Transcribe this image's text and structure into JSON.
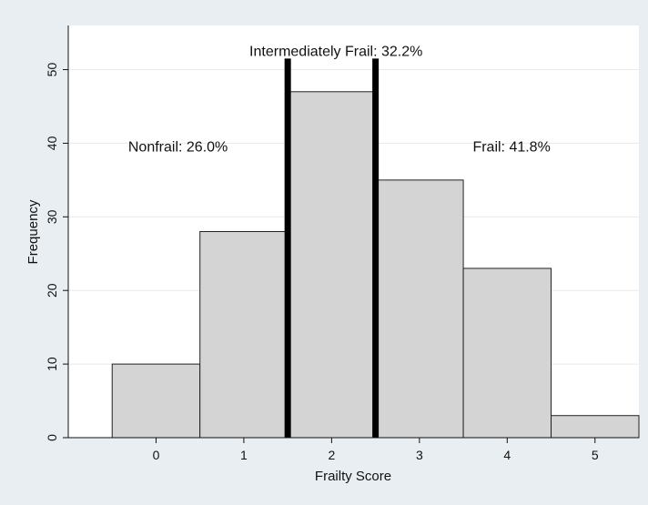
{
  "chart_data": {
    "type": "bar",
    "subtype": "histogram",
    "categories": [
      "0",
      "1",
      "2",
      "3",
      "4",
      "5"
    ],
    "values": [
      10,
      28,
      47,
      35,
      23,
      3
    ],
    "xlabel": "Frailty Score",
    "ylabel": "Frequency",
    "xlim": [
      -1,
      5.5
    ],
    "ylim": [
      0,
      56
    ],
    "yticks": [
      0,
      10,
      20,
      30,
      40,
      50
    ],
    "xticks": [
      0,
      1,
      2,
      3,
      4,
      5
    ],
    "grid": true,
    "bar_color": "#d4d4d4",
    "vlines": [
      1.5,
      2.5
    ],
    "annotations": [
      {
        "label": "Intermediately Frail: 32.2%",
        "x": 2.05,
        "y": 52.5
      },
      {
        "label": "Nonfrail: 26.0%",
        "x": 0.25,
        "y": 39.5
      },
      {
        "label": "Frail: 41.8%",
        "x": 4.05,
        "y": 39.5
      }
    ]
  }
}
